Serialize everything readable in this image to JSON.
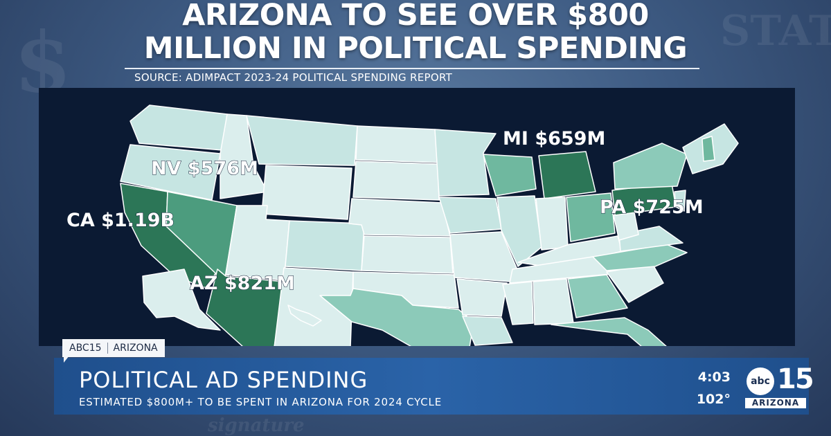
{
  "headline": {
    "title_line1": "ARIZONA TO SEE OVER $800",
    "title_line2": "MILLION IN POLITICAL SPENDING",
    "source": "SOURCE: ADIMPACT 2023-24 POLITICAL SPENDING REPORT"
  },
  "map": {
    "subject": "United States political ad spending by state",
    "labels": [
      {
        "state": "NV",
        "text": "NV $576M",
        "value_musd": 576
      },
      {
        "state": "CA",
        "text": "CA $1.19B",
        "value_musd": 1190
      },
      {
        "state": "AZ",
        "text": "AZ $821M",
        "value_musd": 821
      },
      {
        "state": "MI",
        "text": "MI $659M",
        "value_musd": 659
      },
      {
        "state": "PA",
        "text": "PA $725M",
        "value_musd": 725
      }
    ],
    "colors": {
      "panel": "#0b1a33",
      "low": "#dbeeed",
      "light": "#c6e5e2",
      "mid": "#8ccab9",
      "medium": "#6fb89f",
      "high": "#4c9c7e",
      "highest": "#2c7657",
      "border": "#ffffff"
    }
  },
  "ticker": {
    "station": "ABC15",
    "region": "ARIZONA",
    "headline": "POLITICAL AD SPENDING",
    "subline": "ESTIMATED $800M+ TO BE SPENT IN ARIZONA FOR 2024 CYCLE",
    "time": "4:03",
    "temperature": "102°"
  },
  "logo": {
    "network": "abc",
    "channel": "15",
    "state": "ARIZONA"
  }
}
